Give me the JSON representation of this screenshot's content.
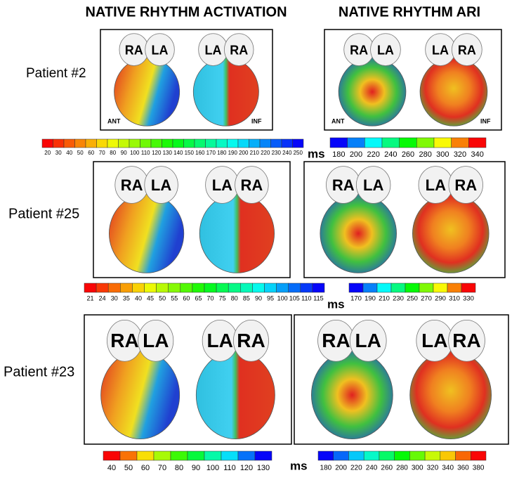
{
  "headers": [
    "NATIVE RHYTHM ACTIVATION",
    "NATIVE RHYTHM ARI"
  ],
  "rows": [
    {
      "patient": "Patient #2",
      "activation": {
        "left": [
          "RA",
          "LA"
        ],
        "right": [
          "LA",
          "RA"
        ],
        "views": [
          "ANT",
          "INF"
        ]
      },
      "ari": {
        "left": [
          "RA",
          "LA"
        ],
        "right": [
          "LA",
          "RA"
        ],
        "views": [
          "ANT",
          "INF"
        ]
      },
      "activation_scale": {
        "ticks": [
          20,
          30,
          40,
          50,
          60,
          70,
          80,
          90,
          100,
          110,
          120,
          130,
          140,
          150,
          160,
          170,
          180,
          190,
          200,
          210,
          220,
          230,
          240,
          250
        ]
      },
      "ari_scale": {
        "unit": "ms",
        "ticks": [
          180,
          200,
          220,
          240,
          260,
          280,
          300,
          320,
          340
        ]
      }
    },
    {
      "patient": "Patient #25",
      "activation": {
        "left": [
          "RA",
          "LA"
        ],
        "right": [
          "LA",
          "RA"
        ]
      },
      "ari": {
        "left": [
          "RA",
          "LA"
        ],
        "right": [
          "LA",
          "RA"
        ]
      },
      "activation_scale": {
        "ticks": [
          21,
          24,
          30,
          35,
          40,
          45,
          50,
          55,
          60,
          65,
          70,
          75,
          80,
          85,
          90,
          95,
          100,
          105,
          110,
          115
        ]
      },
      "ari_scale": {
        "unit": "ms",
        "ticks": [
          170,
          190,
          210,
          230,
          250,
          270,
          290,
          310,
          330
        ]
      }
    },
    {
      "patient": "Patient #23",
      "activation": {
        "left": [
          "RA",
          "LA"
        ],
        "right": [
          "LA",
          "RA"
        ]
      },
      "ari": {
        "left": [
          "RA",
          "LA"
        ],
        "right": [
          "LA",
          "RA"
        ]
      },
      "activation_scale": {
        "ticks": [
          40,
          50,
          60,
          70,
          80,
          90,
          100,
          110,
          120,
          130
        ]
      },
      "ari_scale": {
        "unit": "ms",
        "ticks": [
          180,
          200,
          220,
          240,
          260,
          280,
          300,
          320,
          340,
          360,
          380
        ]
      }
    }
  ]
}
